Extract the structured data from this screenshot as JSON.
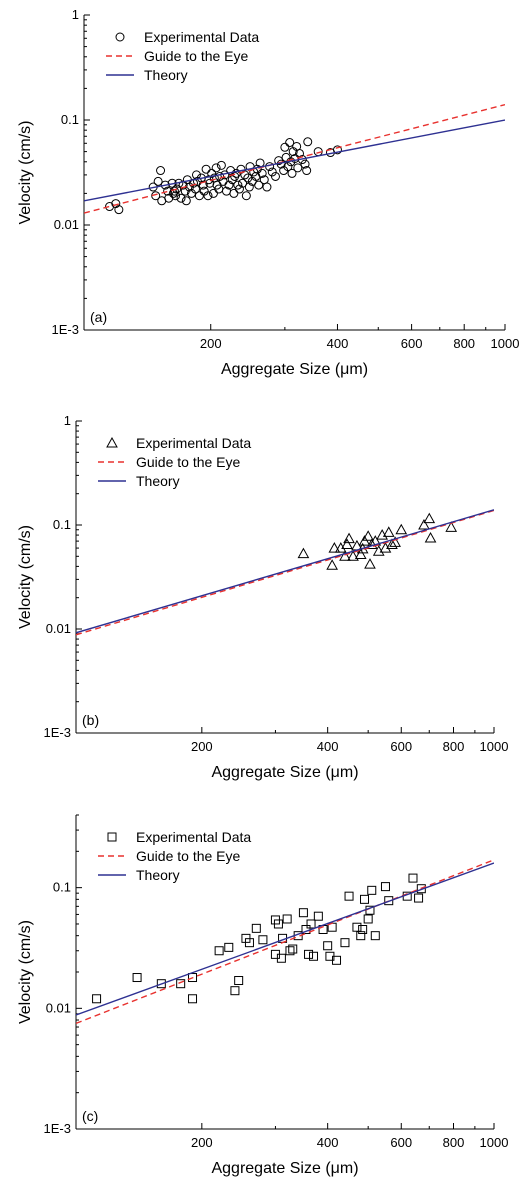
{
  "chart_data": [
    {
      "type": "scatter",
      "panel_label": "(a)",
      "xlabel": "Aggregate Size (μm)",
      "ylabel": "Velocity (cm/s)",
      "xscale": "log",
      "yscale": "log",
      "xlim": [
        100,
        1000
      ],
      "ylim": [
        0.001,
        1
      ],
      "xticks": [
        200,
        400,
        600,
        800,
        1000
      ],
      "xtick_labels": [
        "200",
        "400",
        "600",
        "800",
        "1000"
      ],
      "yticks": [
        0.001,
        0.01,
        0.1,
        1
      ],
      "ytick_labels": [
        "1E-3",
        "0.01",
        "0.1",
        "1"
      ],
      "legend_position": "top-left",
      "legend": [
        "Experimental Data",
        "Guide to the Eye",
        "Theory"
      ],
      "colors": {
        "guide": "#e8312e",
        "theory": "#2e3192",
        "markers": "#000000"
      },
      "series": [
        {
          "name": "Experimental Data",
          "mode": "markers",
          "marker": "circle",
          "x": [
            115,
            119,
            121,
            146,
            148,
            150,
            152,
            153,
            156,
            158,
            159,
            162,
            163,
            164,
            165,
            166,
            168,
            170,
            172,
            174,
            175,
            176,
            178,
            180,
            182,
            184,
            185,
            186,
            188,
            190,
            192,
            193,
            195,
            197,
            198,
            199,
            201,
            203,
            204,
            206,
            207,
            209,
            210,
            212,
            214,
            216,
            218,
            221,
            223,
            225,
            227,
            228,
            230,
            232,
            234,
            236,
            238,
            241,
            243,
            245,
            247,
            248,
            251,
            253,
            256,
            258,
            260,
            262,
            265,
            268,
            272,
            276,
            280,
            285,
            290,
            294,
            298,
            300,
            302,
            305,
            308,
            310,
            312,
            314,
            317,
            320,
            322,
            325,
            330,
            335,
            338,
            340,
            360,
            385,
            400
          ],
          "y": [
            0.015,
            0.016,
            0.014,
            0.023,
            0.019,
            0.026,
            0.033,
            0.017,
            0.024,
            0.021,
            0.018,
            0.025,
            0.02,
            0.021,
            0.019,
            0.022,
            0.025,
            0.018,
            0.024,
            0.021,
            0.017,
            0.027,
            0.023,
            0.02,
            0.025,
            0.022,
            0.03,
            0.026,
            0.019,
            0.028,
            0.024,
            0.021,
            0.034,
            0.019,
            0.027,
            0.025,
            0.031,
            0.02,
            0.028,
            0.035,
            0.024,
            0.022,
            0.029,
            0.037,
            0.026,
            0.03,
            0.021,
            0.024,
            0.033,
            0.027,
            0.02,
            0.029,
            0.031,
            0.024,
            0.022,
            0.034,
            0.025,
            0.03,
            0.019,
            0.028,
            0.023,
            0.036,
            0.026,
            0.032,
            0.029,
            0.034,
            0.024,
            0.039,
            0.031,
            0.027,
            0.023,
            0.036,
            0.032,
            0.029,
            0.041,
            0.038,
            0.033,
            0.055,
            0.044,
            0.036,
            0.061,
            0.04,
            0.031,
            0.05,
            0.043,
            0.056,
            0.035,
            0.048,
            0.042,
            0.038,
            0.033,
            0.062,
            0.05,
            0.049,
            0.052
          ]
        },
        {
          "name": "Guide to the Eye",
          "mode": "line",
          "style": "dashed",
          "x": [
            100,
            1000
          ],
          "y": [
            0.013,
            0.14
          ]
        },
        {
          "name": "Theory",
          "mode": "line",
          "style": "solid",
          "x": [
            100,
            1000
          ],
          "y": [
            0.017,
            0.1
          ]
        }
      ]
    },
    {
      "type": "scatter",
      "panel_label": "(b)",
      "xlabel": "Aggregate Size (μm)",
      "ylabel": "Velocity (cm/s)",
      "xscale": "log",
      "yscale": "log",
      "xlim": [
        100,
        1000
      ],
      "ylim": [
        0.001,
        1
      ],
      "xticks": [
        200,
        400,
        600,
        800,
        1000
      ],
      "xtick_labels": [
        "200",
        "400",
        "600",
        "800",
        "1000"
      ],
      "yticks": [
        0.001,
        0.01,
        0.1,
        1
      ],
      "ytick_labels": [
        "1E-3",
        "0.01",
        "0.1",
        "1"
      ],
      "legend_position": "top-left",
      "legend": [
        "Experimental Data",
        "Guide to the Eye",
        "Theory"
      ],
      "colors": {
        "guide": "#e8312e",
        "theory": "#2e3192",
        "markers": "#000000"
      },
      "series": [
        {
          "name": "Experimental Data",
          "mode": "markers",
          "marker": "triangle",
          "x": [
            350,
            410,
            415,
            430,
            440,
            445,
            450,
            460,
            470,
            480,
            485,
            490,
            500,
            505,
            510,
            520,
            530,
            540,
            550,
            560,
            570,
            580,
            600,
            680,
            700,
            705,
            790
          ],
          "y": [
            0.053,
            0.041,
            0.06,
            0.06,
            0.05,
            0.065,
            0.074,
            0.05,
            0.063,
            0.052,
            0.059,
            0.07,
            0.078,
            0.042,
            0.065,
            0.07,
            0.056,
            0.08,
            0.06,
            0.085,
            0.065,
            0.068,
            0.09,
            0.1,
            0.115,
            0.075,
            0.095
          ]
        },
        {
          "name": "Guide to the Eye",
          "mode": "line",
          "style": "dashed",
          "x": [
            100,
            1000
          ],
          "y": [
            0.0088,
            0.138
          ]
        },
        {
          "name": "Theory",
          "mode": "line",
          "style": "solid",
          "x": [
            100,
            1000
          ],
          "y": [
            0.0092,
            0.14
          ]
        }
      ]
    },
    {
      "type": "scatter",
      "panel_label": "(c)",
      "xlabel": "Aggregate Size (μm)",
      "ylabel": "Velocity (cm/s)",
      "xscale": "log",
      "yscale": "log",
      "xlim": [
        100,
        1000
      ],
      "ylim": [
        0.001,
        0.4
      ],
      "xticks": [
        200,
        400,
        600,
        800,
        1000
      ],
      "xtick_labels": [
        "200",
        "400",
        "600",
        "800",
        "1000"
      ],
      "yticks": [
        0.001,
        0.01,
        0.1
      ],
      "ytick_labels": [
        "1E-3",
        "0.01",
        "0.1"
      ],
      "legend_position": "top-left",
      "legend": [
        "Experimental Data",
        "Guide to the Eye",
        "Theory"
      ],
      "colors": {
        "guide": "#e8312e",
        "theory": "#2e3192",
        "markers": "#000000"
      },
      "series": [
        {
          "name": "Experimental Data",
          "mode": "markers",
          "marker": "square",
          "x": [
            112,
            140,
            160,
            178,
            190,
            190,
            220,
            232,
            240,
            245,
            255,
            260,
            270,
            280,
            300,
            300,
            305,
            310,
            312,
            320,
            325,
            330,
            340,
            350,
            355,
            360,
            365,
            370,
            380,
            390,
            400,
            405,
            410,
            420,
            440,
            450,
            470,
            480,
            485,
            490,
            500,
            505,
            510,
            520,
            550,
            560,
            620,
            640,
            660,
            670
          ],
          "y": [
            0.012,
            0.018,
            0.016,
            0.016,
            0.012,
            0.018,
            0.03,
            0.032,
            0.014,
            0.017,
            0.038,
            0.035,
            0.046,
            0.037,
            0.028,
            0.054,
            0.05,
            0.026,
            0.038,
            0.055,
            0.03,
            0.031,
            0.04,
            0.062,
            0.045,
            0.028,
            0.05,
            0.027,
            0.058,
            0.045,
            0.033,
            0.027,
            0.047,
            0.025,
            0.035,
            0.085,
            0.047,
            0.04,
            0.045,
            0.08,
            0.055,
            0.065,
            0.095,
            0.04,
            0.102,
            0.078,
            0.085,
            0.12,
            0.082,
            0.098
          ]
        },
        {
          "name": "Guide to the Eye",
          "mode": "line",
          "style": "dashed",
          "x": [
            100,
            1000
          ],
          "y": [
            0.0075,
            0.17
          ]
        },
        {
          "name": "Theory",
          "mode": "line",
          "style": "solid",
          "x": [
            100,
            1000
          ],
          "y": [
            0.0088,
            0.16
          ]
        }
      ]
    }
  ]
}
